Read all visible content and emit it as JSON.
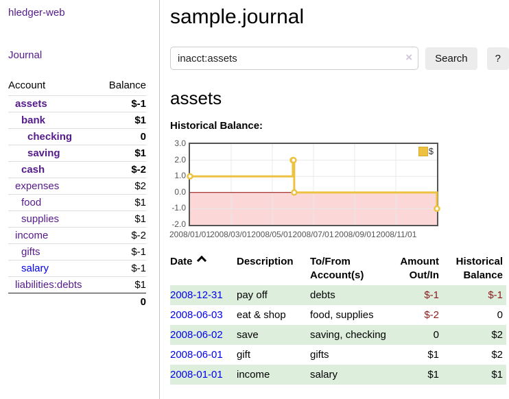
{
  "sidebar": {
    "app_title": "hledger-web",
    "journal_label": "Journal",
    "accounts_table": {
      "headers": {
        "account": "Account",
        "balance": "Balance"
      },
      "rows": [
        {
          "name": "assets",
          "depth": 0,
          "bold": true,
          "balance": "$-1",
          "negative": true
        },
        {
          "name": "bank",
          "depth": 1,
          "bold": true,
          "balance": "$1",
          "negative": false
        },
        {
          "name": "checking",
          "depth": 2,
          "bold": true,
          "balance": "0",
          "negative": false
        },
        {
          "name": "saving",
          "depth": 2,
          "bold": true,
          "balance": "$1",
          "negative": false
        },
        {
          "name": "cash",
          "depth": 1,
          "bold": true,
          "balance": "$-2",
          "negative": true
        },
        {
          "name": "expenses",
          "depth": 0,
          "bold": false,
          "balance": "$2",
          "negative": false
        },
        {
          "name": "food",
          "depth": 1,
          "bold": false,
          "balance": "$1",
          "negative": false
        },
        {
          "name": "supplies",
          "depth": 1,
          "bold": false,
          "balance": "$1",
          "negative": false
        },
        {
          "name": "income",
          "depth": 0,
          "bold": false,
          "balance": "$-2",
          "negative": true
        },
        {
          "name": "gifts",
          "depth": 1,
          "bold": false,
          "balance": "$-1",
          "negative": true
        },
        {
          "name": "salary",
          "depth": 1,
          "bold": false,
          "balance": "$-1",
          "negative": true,
          "blue": true
        },
        {
          "name": "liabilities:debts",
          "depth": 0,
          "bold": false,
          "balance": "$1",
          "negative": false
        }
      ],
      "total": "0"
    }
  },
  "main": {
    "title": "sample.journal",
    "search": {
      "value": "inacct:assets",
      "clear_icon": "×",
      "search_button": "Search",
      "help_button": "?"
    },
    "account_heading": "assets",
    "chart_heading": "Historical Balance:",
    "register_table": {
      "headers": {
        "date": "Date",
        "description": "Description",
        "to_from_line1": "To/From",
        "to_from_line2": "Account(s)",
        "amount_line1": "Amount",
        "amount_line2": "Out/In",
        "balance_line1": "Historical",
        "balance_line2": "Balance"
      },
      "rows": [
        {
          "date": "2008-12-31",
          "description": "pay off",
          "to_from": "debts",
          "amount": "$-1",
          "amount_negative": true,
          "balance": "$-1",
          "balance_negative": true
        },
        {
          "date": "2008-06-03",
          "description": "eat & shop",
          "to_from": "food, supplies",
          "amount": "$-2",
          "amount_negative": true,
          "balance": "0",
          "balance_negative": false
        },
        {
          "date": "2008-06-02",
          "description": "save",
          "to_from": "saving, checking",
          "amount": "0",
          "amount_negative": false,
          "balance": "$2",
          "balance_negative": false
        },
        {
          "date": "2008-06-01",
          "description": "gift",
          "to_from": "gifts",
          "amount": "$1",
          "amount_negative": false,
          "balance": "$2",
          "balance_negative": false
        },
        {
          "date": "2008-01-01",
          "description": "income",
          "to_from": "salary",
          "amount": "$1",
          "amount_negative": false,
          "balance": "$1",
          "balance_negative": false
        }
      ]
    }
  },
  "chart_data": {
    "type": "line",
    "step": true,
    "title": "Historical Balance:",
    "series": [
      {
        "name": "$",
        "color": "#edc240",
        "points": [
          [
            "2008-01-01",
            1
          ],
          [
            "2008-06-01",
            2
          ],
          [
            "2008-06-02",
            2
          ],
          [
            "2008-06-03",
            0
          ],
          [
            "2008-12-31",
            -1
          ]
        ]
      }
    ],
    "x_tick_labels": [
      "2008/01/01",
      "2008/03/01",
      "2008/05/01",
      "2008/07/01",
      "2008/09/01",
      "2008/11/01"
    ],
    "y_tick_labels": [
      "3.0",
      "2.0",
      "1.0",
      "0.0",
      "-1.0",
      "-2.0"
    ],
    "xlim": [
      "2008-01-01",
      "2008-12-31"
    ],
    "ylim": [
      -2,
      3
    ],
    "grid": true,
    "legend_position": "top-right",
    "negative_region_color": "#fbd7d7",
    "zero_line_color": "#8b0000",
    "grid_color": "#e8e8e8",
    "border_color": "#545454"
  },
  "colors": {
    "link_purple": "#551A8B",
    "link_blue": "#0000EE",
    "negative_bold": "#7a1010",
    "negative_muted": "#aa5f5f",
    "negative_table": "#8b1a1a",
    "row_stripe_green": "#ddeedd",
    "chart_line_yellow": "#edc240"
  }
}
